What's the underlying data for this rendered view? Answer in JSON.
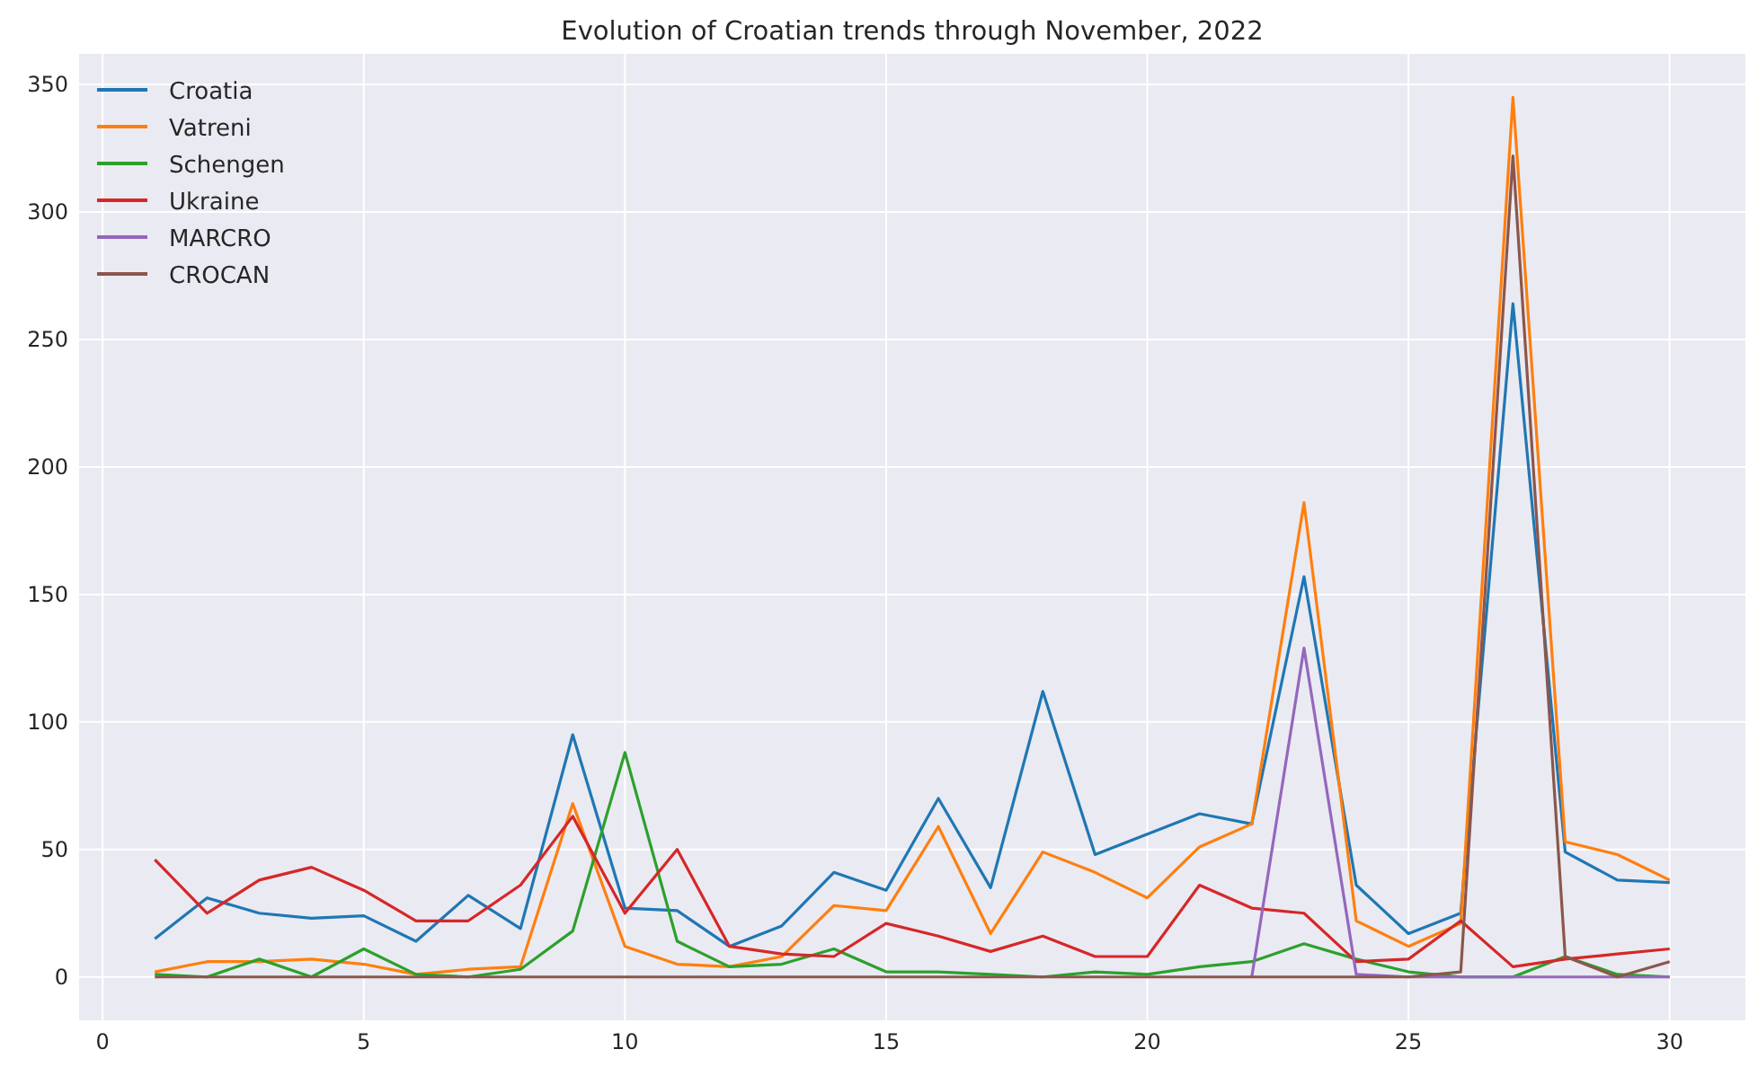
{
  "chart_data": {
    "type": "line",
    "title": "Evolution of Croatian trends through November, 2022",
    "x": [
      1,
      2,
      3,
      4,
      5,
      6,
      7,
      8,
      9,
      10,
      11,
      12,
      13,
      14,
      15,
      16,
      17,
      18,
      19,
      20,
      21,
      22,
      23,
      24,
      25,
      26,
      27,
      28,
      29,
      30
    ],
    "xlim": [
      -0.45,
      31.45
    ],
    "xticks": [
      0,
      5,
      10,
      15,
      20,
      25,
      30
    ],
    "ylim": [
      -17,
      362
    ],
    "yticks": [
      0,
      50,
      100,
      150,
      200,
      250,
      300,
      350
    ],
    "grid": true,
    "legend": "top left",
    "line_style": "solid",
    "marker": "none",
    "series": [
      {
        "name": "Croatia",
        "color": "#1f77b4",
        "values": [
          15,
          31,
          25,
          23,
          24,
          14,
          32,
          19,
          95,
          27,
          26,
          12,
          20,
          41,
          34,
          70,
          35,
          112,
          48,
          56,
          64,
          60,
          157,
          36,
          17,
          25,
          264,
          49,
          38,
          37
        ]
      },
      {
        "name": "Vatreni",
        "color": "#ff7f0e",
        "values": [
          2,
          6,
          6,
          7,
          5,
          1,
          3,
          4,
          68,
          12,
          5,
          4,
          8,
          28,
          26,
          59,
          17,
          49,
          41,
          31,
          51,
          60,
          186,
          22,
          12,
          21,
          345,
          53,
          48,
          38
        ]
      },
      {
        "name": "Schengen",
        "color": "#2ca02c",
        "values": [
          1,
          0,
          7,
          0,
          11,
          1,
          0,
          3,
          18,
          88,
          14,
          4,
          5,
          11,
          2,
          2,
          1,
          0,
          2,
          1,
          4,
          6,
          13,
          7,
          2,
          0,
          0,
          8,
          1,
          0
        ]
      },
      {
        "name": "Ukraine",
        "color": "#d62728",
        "values": [
          46,
          25,
          38,
          43,
          34,
          22,
          22,
          36,
          63,
          25,
          50,
          12,
          9,
          8,
          21,
          16,
          10,
          16,
          8,
          8,
          36,
          27,
          25,
          6,
          7,
          22,
          4,
          7,
          9,
          11
        ]
      },
      {
        "name": "MARCRO",
        "color": "#9467bd",
        "values": [
          null,
          null,
          null,
          null,
          null,
          null,
          null,
          null,
          null,
          null,
          null,
          null,
          null,
          null,
          null,
          null,
          null,
          null,
          null,
          null,
          null,
          0,
          129,
          1,
          0,
          0,
          0,
          0,
          0,
          0
        ]
      },
      {
        "name": "CROCAN",
        "color": "#8c564b",
        "values": [
          0,
          0,
          0,
          0,
          0,
          0,
          0,
          0,
          0,
          0,
          0,
          0,
          0,
          0,
          0,
          0,
          0,
          0,
          0,
          0,
          0,
          0,
          0,
          0,
          0,
          2,
          322,
          8,
          0,
          6
        ]
      }
    ]
  }
}
